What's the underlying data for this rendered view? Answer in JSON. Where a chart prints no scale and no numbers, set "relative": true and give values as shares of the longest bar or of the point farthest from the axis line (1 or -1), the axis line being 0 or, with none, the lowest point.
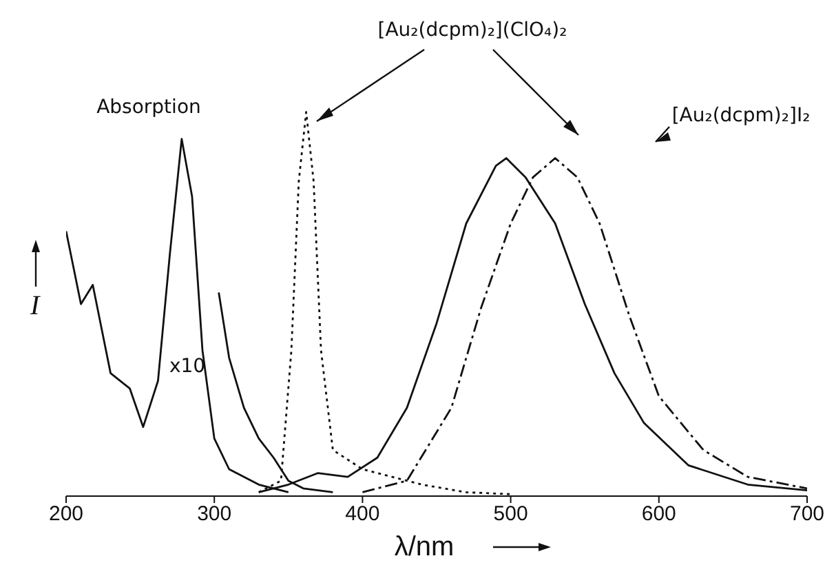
{
  "chart_data": {
    "type": "line",
    "relative": true,
    "xlabel": "λ/nm",
    "ylabel": "I",
    "xlim": [
      200,
      700
    ],
    "xticks": [
      200,
      300,
      400,
      500,
      600,
      700
    ],
    "marker": "none",
    "annotations": [
      "Absorption",
      "x10",
      "[Au₂(dcpm)₂](ClO₄)₂",
      "[Au₂(dcpm)₂]I₂"
    ],
    "series": [
      {
        "color": "#111111",
        "line_style": "solid",
        "x": [
          200,
          210,
          218,
          230,
          243,
          252,
          262,
          270,
          278,
          285,
          292,
          300,
          310,
          330,
          350
        ],
        "values": [
          0.69,
          0.5,
          0.55,
          0.32,
          0.28,
          0.18,
          0.3,
          0.63,
          0.93,
          0.78,
          0.38,
          0.15,
          0.07,
          0.03,
          0.01
        ]
      },
      {
        "color": "#111111",
        "line_style": "solid",
        "x": [
          303,
          310,
          320,
          330,
          340,
          350,
          360,
          380
        ],
        "values": [
          0.53,
          0.36,
          0.23,
          0.15,
          0.1,
          0.04,
          0.02,
          0.01
        ]
      },
      {
        "color": "#111111",
        "line_style": "solid",
        "x": [
          330,
          350,
          370,
          390,
          410,
          430,
          450,
          470,
          490,
          497,
          510,
          530,
          550,
          570,
          590,
          620,
          660,
          700
        ],
        "values": [
          0.01,
          0.03,
          0.06,
          0.05,
          0.1,
          0.23,
          0.45,
          0.71,
          0.86,
          0.88,
          0.83,
          0.71,
          0.5,
          0.32,
          0.19,
          0.08,
          0.03,
          0.015
        ]
      },
      {
        "color": "#111111",
        "line_style": "dotted",
        "x": [
          330,
          345,
          352,
          357,
          362,
          367,
          372,
          380,
          400,
          420,
          440,
          470,
          500
        ],
        "values": [
          0.01,
          0.04,
          0.38,
          0.82,
          1,
          0.82,
          0.38,
          0.12,
          0.07,
          0.05,
          0.03,
          0.01,
          0.005
        ]
      },
      {
        "color": "#111111",
        "line_style": "dashdot",
        "x": [
          400,
          430,
          460,
          480,
          500,
          515,
          530,
          545,
          560,
          580,
          600,
          630,
          660,
          700
        ],
        "values": [
          0.01,
          0.04,
          0.23,
          0.49,
          0.71,
          0.83,
          0.88,
          0.83,
          0.71,
          0.47,
          0.26,
          0.12,
          0.05,
          0.02
        ]
      }
    ]
  }
}
